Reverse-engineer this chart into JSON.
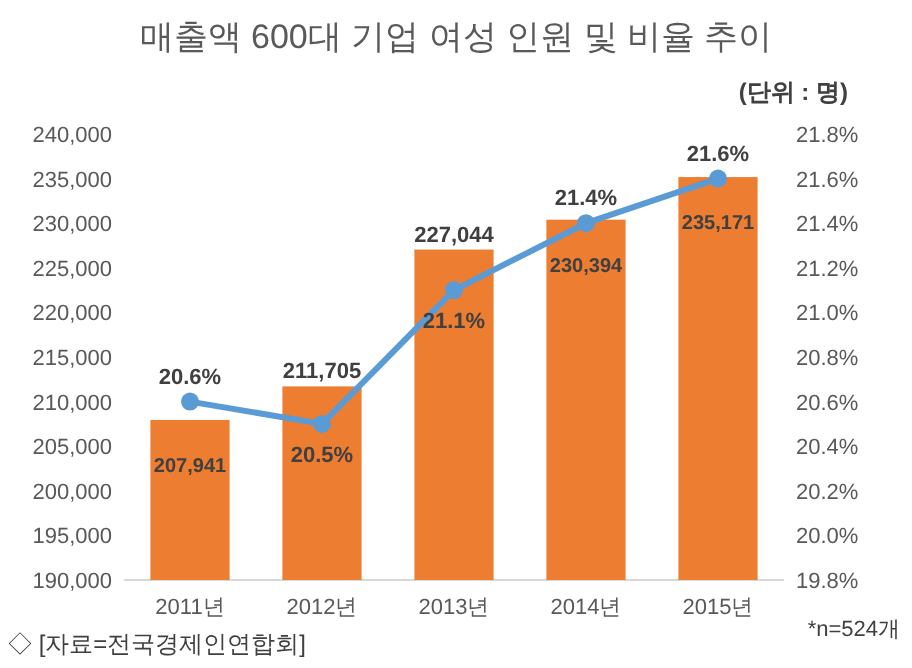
{
  "chart_data": {
    "type": "bar",
    "title": "매출액 600대 기업 여성 인원 및 비율 추이",
    "categories": [
      "2011년",
      "2012년",
      "2013년",
      "2014년",
      "2015년"
    ],
    "series": [
      {
        "color": "#ed7d31",
        "values": [
          207941,
          211705,
          227044,
          230394,
          235171
        ],
        "value_labels": [
          "207,941",
          "211,705",
          "227,044",
          "230,394",
          "235,171"
        ]
      },
      {
        "type": "line",
        "axis": "y2",
        "color": "#5b9bd5",
        "marker": "circle",
        "values": [
          20.6,
          20.5,
          21.1,
          21.4,
          21.6
        ],
        "value_labels": [
          "20.6%",
          "20.5%",
          "21.1%",
          "21.4%",
          "21.6%"
        ]
      }
    ],
    "ylim": [
      190000,
      240000
    ],
    "yticks": [
      {
        "value": 190000,
        "label": "190,000"
      },
      {
        "value": 195000,
        "label": "195,000"
      },
      {
        "value": 200000,
        "label": "200,000"
      },
      {
        "value": 205000,
        "label": "205,000"
      },
      {
        "value": 210000,
        "label": "210,000"
      },
      {
        "value": 215000,
        "label": "215,000"
      },
      {
        "value": 220000,
        "label": "220,000"
      },
      {
        "value": 225000,
        "label": "225,000"
      },
      {
        "value": 230000,
        "label": "230,000"
      },
      {
        "value": 235000,
        "label": "235,000"
      },
      {
        "value": 240000,
        "label": "240,000"
      }
    ],
    "y2lim": [
      19.8,
      21.8
    ],
    "y2ticks": [
      {
        "value": 19.8,
        "label": "19.8%"
      },
      {
        "value": 20.0,
        "label": "20.0%"
      },
      {
        "value": 20.2,
        "label": "20.2%"
      },
      {
        "value": 20.4,
        "label": "20.4%"
      },
      {
        "value": 20.6,
        "label": "20.6%"
      },
      {
        "value": 20.8,
        "label": "20.8%"
      },
      {
        "value": 21.0,
        "label": "21.0%"
      },
      {
        "value": 21.2,
        "label": "21.2%"
      },
      {
        "value": 21.4,
        "label": "21.4%"
      },
      {
        "value": 21.6,
        "label": "21.6%"
      },
      {
        "value": 21.8,
        "label": "21.8%"
      }
    ],
    "annotations": [
      "(단위 : 명)",
      "*n=524개",
      "◇ [자료=전국경제인연합회]"
    ]
  }
}
